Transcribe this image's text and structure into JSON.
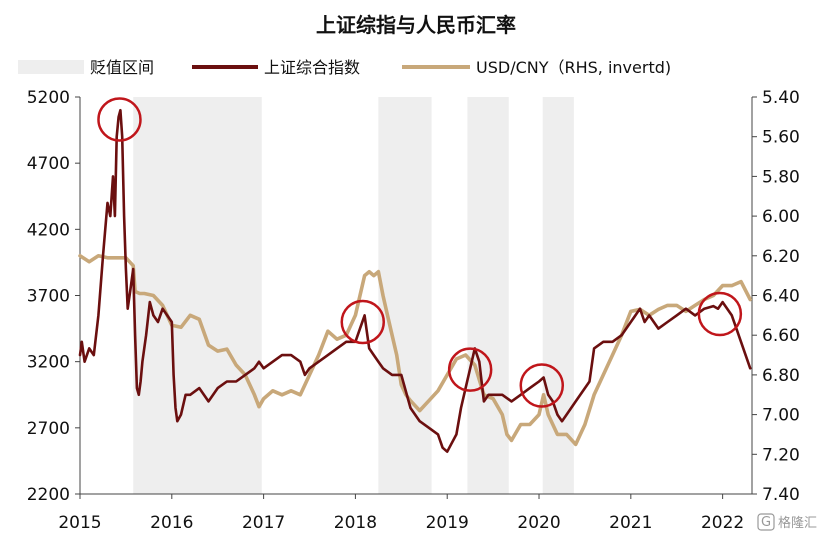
{
  "chart_data": {
    "type": "line",
    "title": "上证综指与人民币汇率",
    "legend": [
      {
        "key": "shade",
        "label": "贬值区间",
        "color": "#eeeeee"
      },
      {
        "key": "sse",
        "label": "上证综合指数",
        "color": "#6b0f0f"
      },
      {
        "key": "usdcny",
        "label": "USD/CNY（RHS, invertd)",
        "color": "#c8a87a"
      }
    ],
    "x_range": [
      2015.0,
      2022.32
    ],
    "x_ticks": [
      "2015",
      "2016",
      "2017",
      "2018",
      "2019",
      "2020",
      "2021",
      "2022"
    ],
    "y_left": {
      "range": [
        2200,
        5200
      ],
      "ticks": [
        "5200",
        "4700",
        "4200",
        "3700",
        "3200",
        "2700",
        "2200"
      ]
    },
    "y_right": {
      "range": [
        5.4,
        7.4
      ],
      "inverted": true,
      "ticks": [
        "5.40",
        "5.60",
        "5.80",
        "6.00",
        "6.20",
        "6.40",
        "6.60",
        "6.80",
        "7.00",
        "7.20",
        "7.40"
      ]
    },
    "shaded_ranges": [
      [
        2015.58,
        2016.98
      ],
      [
        2018.25,
        2018.83
      ],
      [
        2019.22,
        2019.67
      ],
      [
        2020.04,
        2020.38
      ]
    ],
    "highlight_circles": [
      {
        "x": 2015.43,
        "y": 5030
      },
      {
        "x": 2018.08,
        "y": 3500
      },
      {
        "x": 2019.25,
        "y": 3140
      },
      {
        "x": 2020.03,
        "y": 3020
      },
      {
        "x": 2021.97,
        "y": 3560
      }
    ],
    "series": [
      {
        "name": "上证综合指数",
        "axis": "left",
        "x": [
          2015.0,
          2015.02,
          2015.05,
          2015.1,
          2015.15,
          2015.2,
          2015.25,
          2015.3,
          2015.33,
          2015.36,
          2015.38,
          2015.4,
          2015.42,
          2015.44,
          2015.46,
          2015.48,
          2015.5,
          2015.52,
          2015.55,
          2015.58,
          2015.6,
          2015.62,
          2015.64,
          2015.66,
          2015.68,
          2015.72,
          2015.76,
          2015.8,
          2015.85,
          2015.9,
          2015.95,
          2016.0,
          2016.02,
          2016.04,
          2016.06,
          2016.1,
          2016.15,
          2016.2,
          2016.3,
          2016.4,
          2016.5,
          2016.6,
          2016.7,
          2016.8,
          2016.9,
          2016.95,
          2017.0,
          2017.1,
          2017.2,
          2017.3,
          2017.4,
          2017.45,
          2017.5,
          2017.6,
          2017.7,
          2017.8,
          2017.9,
          2018.0,
          2018.05,
          2018.1,
          2018.12,
          2018.15,
          2018.2,
          2018.25,
          2018.3,
          2018.4,
          2018.5,
          2018.6,
          2018.7,
          2018.8,
          2018.9,
          2018.95,
          2019.0,
          2019.1,
          2019.15,
          2019.2,
          2019.25,
          2019.3,
          2019.35,
          2019.4,
          2019.45,
          2019.5,
          2019.6,
          2019.7,
          2019.8,
          2019.9,
          2020.0,
          2020.05,
          2020.1,
          2020.15,
          2020.2,
          2020.25,
          2020.3,
          2020.4,
          2020.45,
          2020.5,
          2020.55,
          2020.6,
          2020.7,
          2020.8,
          2020.9,
          2021.0,
          2021.05,
          2021.1,
          2021.15,
          2021.2,
          2021.3,
          2021.4,
          2021.5,
          2021.6,
          2021.7,
          2021.8,
          2021.9,
          2021.95,
          2022.0,
          2022.05,
          2022.1,
          2022.15,
          2022.2,
          2022.25,
          2022.3
        ],
        "values": [
          3250,
          3350,
          3200,
          3300,
          3250,
          3550,
          4000,
          4400,
          4300,
          4600,
          4300,
          4900,
          5050,
          5100,
          4900,
          4300,
          3900,
          3600,
          3750,
          3900,
          3400,
          3000,
          2950,
          3050,
          3200,
          3400,
          3650,
          3550,
          3500,
          3600,
          3550,
          3500,
          3100,
          2850,
          2750,
          2800,
          2950,
          2950,
          3000,
          2900,
          3000,
          3050,
          3050,
          3100,
          3150,
          3200,
          3150,
          3200,
          3250,
          3250,
          3200,
          3100,
          3150,
          3200,
          3250,
          3300,
          3350,
          3350,
          3450,
          3550,
          3450,
          3300,
          3250,
          3200,
          3150,
          3100,
          3100,
          2850,
          2750,
          2700,
          2650,
          2550,
          2520,
          2650,
          2850,
          3000,
          3150,
          3300,
          3200,
          2900,
          2950,
          2950,
          2950,
          2900,
          2950,
          3000,
          3050,
          3080,
          2950,
          2900,
          2800,
          2750,
          2800,
          2900,
          2950,
          3000,
          3050,
          3300,
          3350,
          3350,
          3400,
          3500,
          3550,
          3600,
          3500,
          3550,
          3450,
          3500,
          3550,
          3600,
          3550,
          3600,
          3620,
          3600,
          3650,
          3600,
          3550,
          3450,
          3350,
          3250,
          3150
        ],
        "color": "#6b0f0f"
      },
      {
        "name": "USD/CNY（RHS, invertd)",
        "axis": "right",
        "x": [
          2015.0,
          2015.1,
          2015.2,
          2015.3,
          2015.4,
          2015.5,
          2015.58,
          2015.6,
          2015.65,
          2015.7,
          2015.8,
          2015.9,
          2016.0,
          2016.1,
          2016.2,
          2016.3,
          2016.4,
          2016.5,
          2016.6,
          2016.7,
          2016.8,
          2016.9,
          2016.95,
          2017.0,
          2017.1,
          2017.2,
          2017.3,
          2017.4,
          2017.5,
          2017.6,
          2017.7,
          2017.8,
          2017.9,
          2018.0,
          2018.1,
          2018.15,
          2018.2,
          2018.25,
          2018.3,
          2018.35,
          2018.4,
          2018.45,
          2018.5,
          2018.55,
          2018.6,
          2018.7,
          2018.8,
          2018.9,
          2019.0,
          2019.1,
          2019.2,
          2019.3,
          2019.4,
          2019.5,
          2019.6,
          2019.65,
          2019.7,
          2019.8,
          2019.9,
          2020.0,
          2020.05,
          2020.1,
          2020.15,
          2020.2,
          2020.3,
          2020.4,
          2020.5,
          2020.6,
          2020.7,
          2020.8,
          2020.9,
          2021.0,
          2021.1,
          2021.2,
          2021.3,
          2021.4,
          2021.5,
          2021.6,
          2021.7,
          2021.8,
          2021.9,
          2022.0,
          2022.1,
          2022.2,
          2022.3
        ],
        "values": [
          6.2,
          6.23,
          6.2,
          6.21,
          6.21,
          6.21,
          6.25,
          6.38,
          6.39,
          6.39,
          6.4,
          6.45,
          6.55,
          6.56,
          6.5,
          6.52,
          6.65,
          6.68,
          6.67,
          6.75,
          6.8,
          6.9,
          6.96,
          6.92,
          6.88,
          6.9,
          6.88,
          6.9,
          6.8,
          6.7,
          6.58,
          6.62,
          6.6,
          6.5,
          6.3,
          6.28,
          6.3,
          6.28,
          6.4,
          6.5,
          6.6,
          6.7,
          6.85,
          6.9,
          6.93,
          6.98,
          6.93,
          6.88,
          6.8,
          6.72,
          6.7,
          6.75,
          6.9,
          6.92,
          7.0,
          7.1,
          7.13,
          7.05,
          7.05,
          7.0,
          6.9,
          7.0,
          7.05,
          7.1,
          7.1,
          7.15,
          7.05,
          6.9,
          6.8,
          6.7,
          6.6,
          6.48,
          6.47,
          6.5,
          6.47,
          6.45,
          6.45,
          6.48,
          6.45,
          6.42,
          6.4,
          6.35,
          6.35,
          6.33,
          6.42
        ],
        "color": "#c8a87a"
      }
    ]
  },
  "watermark": "格隆汇",
  "watermark_mark": "G"
}
